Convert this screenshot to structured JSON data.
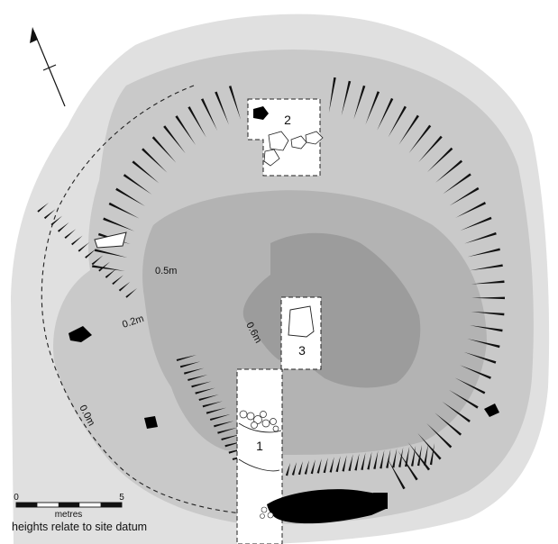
{
  "colors": {
    "outer_zone": "#e0e0e0",
    "zone_0_2": "#c9c9c9",
    "zone_0_5": "#b3b3b3",
    "zone_0_6": "#9c9c9c",
    "stone_fill": "#000000",
    "trench_fill": "#ffffff"
  },
  "icons": {
    "north": "north-arrow-icon",
    "hachure": "bank-hachure",
    "stone": "stone-icon"
  },
  "trenches": [
    {
      "label": "1"
    },
    {
      "label": "2"
    },
    {
      "label": "3"
    }
  ],
  "contours": [
    {
      "label": "0.0m"
    },
    {
      "label": "0.2m"
    },
    {
      "label": "0.5m"
    },
    {
      "label": "0.6m"
    }
  ],
  "scale_bar": {
    "start_label": "0",
    "end_label": "5",
    "unit_label": "metres"
  },
  "caption": "heights relate to site datum"
}
